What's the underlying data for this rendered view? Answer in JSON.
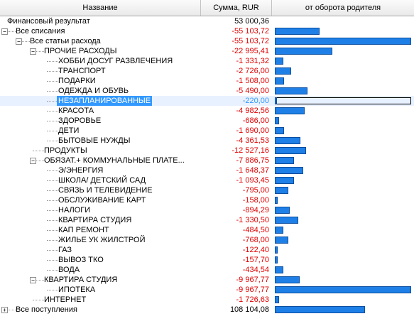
{
  "columns": {
    "name": "Название",
    "sum": "Сумма, RUR",
    "share": "от оборота родителя"
  },
  "colors": {
    "accent": "#1e7fe6",
    "negative": "#e00000",
    "selection": "#3399ff"
  },
  "rows": [
    {
      "label": "Финансовый результат",
      "sum": "53 000,36",
      "neg": false,
      "level": 0,
      "toggle": "",
      "share": null
    },
    {
      "label": "Все списания",
      "sum": "-55 103,72",
      "neg": true,
      "level": 1,
      "toggle": "−",
      "share": 0.33
    },
    {
      "label": "Все статьи расхода",
      "sum": "-55 103,72",
      "neg": true,
      "level": 2,
      "toggle": "−",
      "share": 1.0
    },
    {
      "label": "ПРОЧИЕ РАСХОДЫ",
      "sum": "-22 995,41",
      "neg": true,
      "level": 3,
      "toggle": "−",
      "share": 0.42
    },
    {
      "label": "ХОББИ ДОСУГ РАЗВЛЕЧЕНИЯ",
      "sum": "-1 331,32",
      "neg": true,
      "level": 4,
      "toggle": "",
      "share": 0.06
    },
    {
      "label": "ТРАНСПОРТ",
      "sum": "-2 726,00",
      "neg": true,
      "level": 4,
      "toggle": "",
      "share": 0.12
    },
    {
      "label": "ПОДАРКИ",
      "sum": "-1 508,00",
      "neg": true,
      "level": 4,
      "toggle": "",
      "share": 0.07
    },
    {
      "label": "ОДЕЖДА И ОБУВЬ",
      "sum": "-5 490,00",
      "neg": true,
      "level": 4,
      "toggle": "",
      "share": 0.24
    },
    {
      "label": "НЕЗАПЛАНИРОВАННЫЕ",
      "sum": "-220,00",
      "neg": true,
      "level": 4,
      "toggle": "",
      "share": 0.01,
      "selected": true
    },
    {
      "label": "КРАСОТА",
      "sum": "-4 982,56",
      "neg": true,
      "level": 4,
      "toggle": "",
      "share": 0.22
    },
    {
      "label": "ЗДОРОВЬЕ",
      "sum": "-686,00",
      "neg": true,
      "level": 4,
      "toggle": "",
      "share": 0.03
    },
    {
      "label": "ДЕТИ",
      "sum": "-1 690,00",
      "neg": true,
      "level": 4,
      "toggle": "",
      "share": 0.07
    },
    {
      "label": "БЫТОВЫЕ НУЖДЫ",
      "sum": "-4 361,53",
      "neg": true,
      "level": 4,
      "toggle": "",
      "share": 0.19
    },
    {
      "label": "ПРОДУКТЫ",
      "sum": "-12 527,16",
      "neg": true,
      "level": 3,
      "toggle": "",
      "share": 0.23
    },
    {
      "label": "ОБЯЗАТ.+ КОММУНАЛЬНЫЕ ПЛАТЕ...",
      "sum": "-7 886,75",
      "neg": true,
      "level": 3,
      "toggle": "−",
      "share": 0.14
    },
    {
      "label": "Э/ЭНЕРГИЯ",
      "sum": "-1 648,37",
      "neg": true,
      "level": 4,
      "toggle": "",
      "share": 0.21
    },
    {
      "label": "ШКОЛА/ ДЕТСКИЙ САД",
      "sum": "-1 093,45",
      "neg": true,
      "level": 4,
      "toggle": "",
      "share": 0.14
    },
    {
      "label": "СВЯЗЬ И ТЕЛЕВИДЕНИЕ",
      "sum": "-795,00",
      "neg": true,
      "level": 4,
      "toggle": "",
      "share": 0.1
    },
    {
      "label": "ОБСЛУЖИВАНИЕ КАРТ",
      "sum": "-158,00",
      "neg": true,
      "level": 4,
      "toggle": "",
      "share": 0.02
    },
    {
      "label": "НАЛОГИ",
      "sum": "-894,29",
      "neg": true,
      "level": 4,
      "toggle": "",
      "share": 0.11
    },
    {
      "label": "КВАРТИРА СТУДИЯ",
      "sum": "-1 330,50",
      "neg": true,
      "level": 4,
      "toggle": "",
      "share": 0.17
    },
    {
      "label": "КАП РЕМОНТ",
      "sum": "-484,50",
      "neg": true,
      "level": 4,
      "toggle": "",
      "share": 0.06
    },
    {
      "label": "ЖИЛЬЕ УК ЖИЛСТРОЙ",
      "sum": "-768,00",
      "neg": true,
      "level": 4,
      "toggle": "",
      "share": 0.1
    },
    {
      "label": "ГАЗ",
      "sum": "-122,40",
      "neg": true,
      "level": 4,
      "toggle": "",
      "share": 0.02
    },
    {
      "label": "ВЫВОЗ ТКО",
      "sum": "-157,70",
      "neg": true,
      "level": 4,
      "toggle": "",
      "share": 0.02
    },
    {
      "label": "ВОДА",
      "sum": "-434,54",
      "neg": true,
      "level": 4,
      "toggle": "",
      "share": 0.06
    },
    {
      "label": "КВАРТИРА СТУДИЯ",
      "sum": "-9 967,77",
      "neg": true,
      "level": 3,
      "toggle": "−",
      "share": 0.18
    },
    {
      "label": "ИПОТЕКА",
      "sum": "-9 967,77",
      "neg": true,
      "level": 4,
      "toggle": "",
      "share": 1.0
    },
    {
      "label": "ИНТЕРНЕТ",
      "sum": "-1 726,63",
      "neg": true,
      "level": 3,
      "toggle": "",
      "share": 0.03
    },
    {
      "label": "Все поступления",
      "sum": "108 104,08",
      "neg": false,
      "level": 1,
      "toggle": "+",
      "share": 0.66
    }
  ]
}
